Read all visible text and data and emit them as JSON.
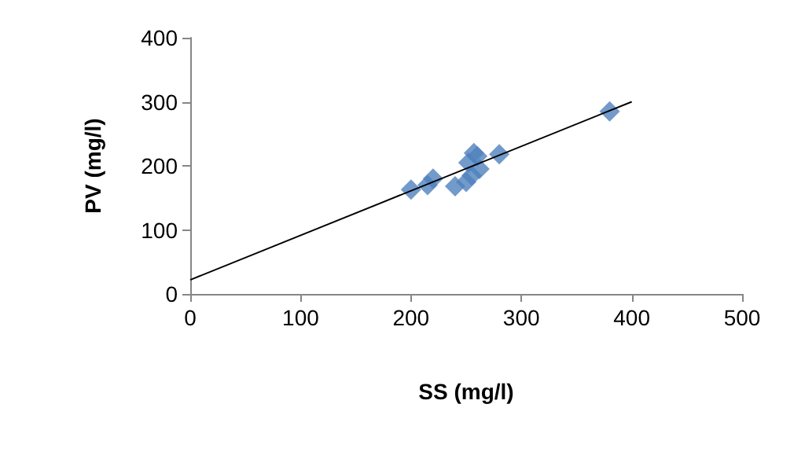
{
  "chart_data": {
    "type": "scatter",
    "xlabel": "SS (mg/l)",
    "ylabel": "PV (mg/l)",
    "marker": "diamond",
    "grid": false,
    "xlim": [
      0,
      500
    ],
    "xticks": [
      0,
      100,
      200,
      300,
      400,
      500
    ],
    "ylim": [
      0,
      400
    ],
    "yticks": [
      0,
      100,
      200,
      300,
      400
    ],
    "series": [
      {
        "color": "#4f81bd",
        "x": [
          200,
          215,
          220,
          240,
          250,
          252,
          255,
          257,
          260,
          262,
          280,
          380
        ],
        "values": [
          163,
          170,
          180,
          168,
          175,
          205,
          185,
          220,
          215,
          195,
          218,
          285
        ]
      },
      {
        "type": "line",
        "color": "#000000",
        "x": [
          0,
          400
        ],
        "values": [
          22,
          300
        ],
        "marker": "none"
      }
    ]
  }
}
